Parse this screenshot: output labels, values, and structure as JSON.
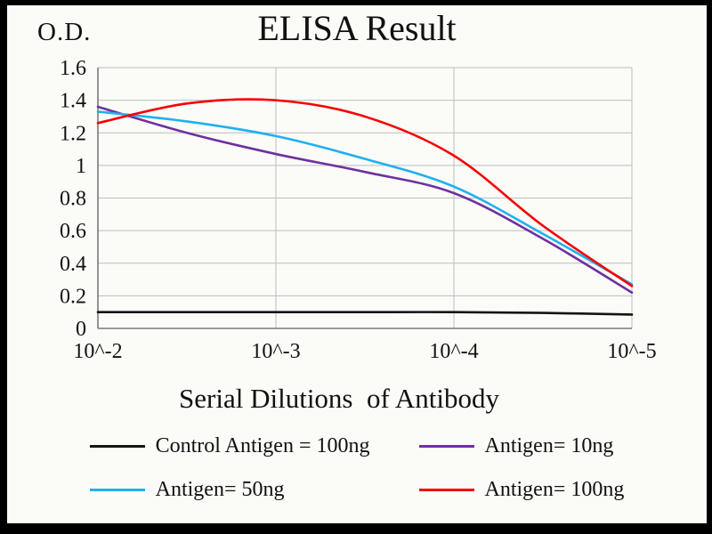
{
  "header": {
    "od_label": "O.D.",
    "title": "ELISA Result"
  },
  "x_axis_title": "Serial Dilutions  of Antibody",
  "chart_data": {
    "type": "line",
    "title": "ELISA Result",
    "ylabel": "O.D.",
    "xlabel": "Serial Dilutions of Antibody",
    "x_tick_labels": [
      "10^-2",
      "10^-3",
      "10^-4",
      "10^-5"
    ],
    "x_tick_positions": [
      0,
      1,
      2,
      3
    ],
    "y_ticks": [
      "1.6",
      "1.4",
      "1.2",
      "1",
      "0.8",
      "0.6",
      "0.4",
      "0.2",
      "0"
    ],
    "ylim": [
      0,
      1.6
    ],
    "xlim": [
      0,
      3
    ],
    "grid": true,
    "grid_color": "#bdbdbd",
    "axis_color": "#7a7a7a",
    "legend_position": "bottom",
    "x": [
      0,
      0.5,
      1,
      1.5,
      2,
      2.5,
      3
    ],
    "series": [
      {
        "name": "Control Antigen = 100ng",
        "color": "#141414",
        "values": [
          0.1,
          0.1,
          0.1,
          0.1,
          0.1,
          0.095,
          0.085
        ]
      },
      {
        "name": "Antigen= 10ng",
        "color": "#7030a0",
        "values": [
          1.36,
          1.2,
          1.07,
          0.96,
          0.83,
          0.55,
          0.22
        ]
      },
      {
        "name": "Antigen= 50ng",
        "color": "#1fb0f0",
        "values": [
          1.33,
          1.27,
          1.18,
          1.04,
          0.87,
          0.58,
          0.27
        ]
      },
      {
        "name": "Antigen= 100ng",
        "color": "#f50000",
        "values": [
          1.26,
          1.38,
          1.4,
          1.3,
          1.06,
          0.63,
          0.26
        ]
      }
    ]
  }
}
